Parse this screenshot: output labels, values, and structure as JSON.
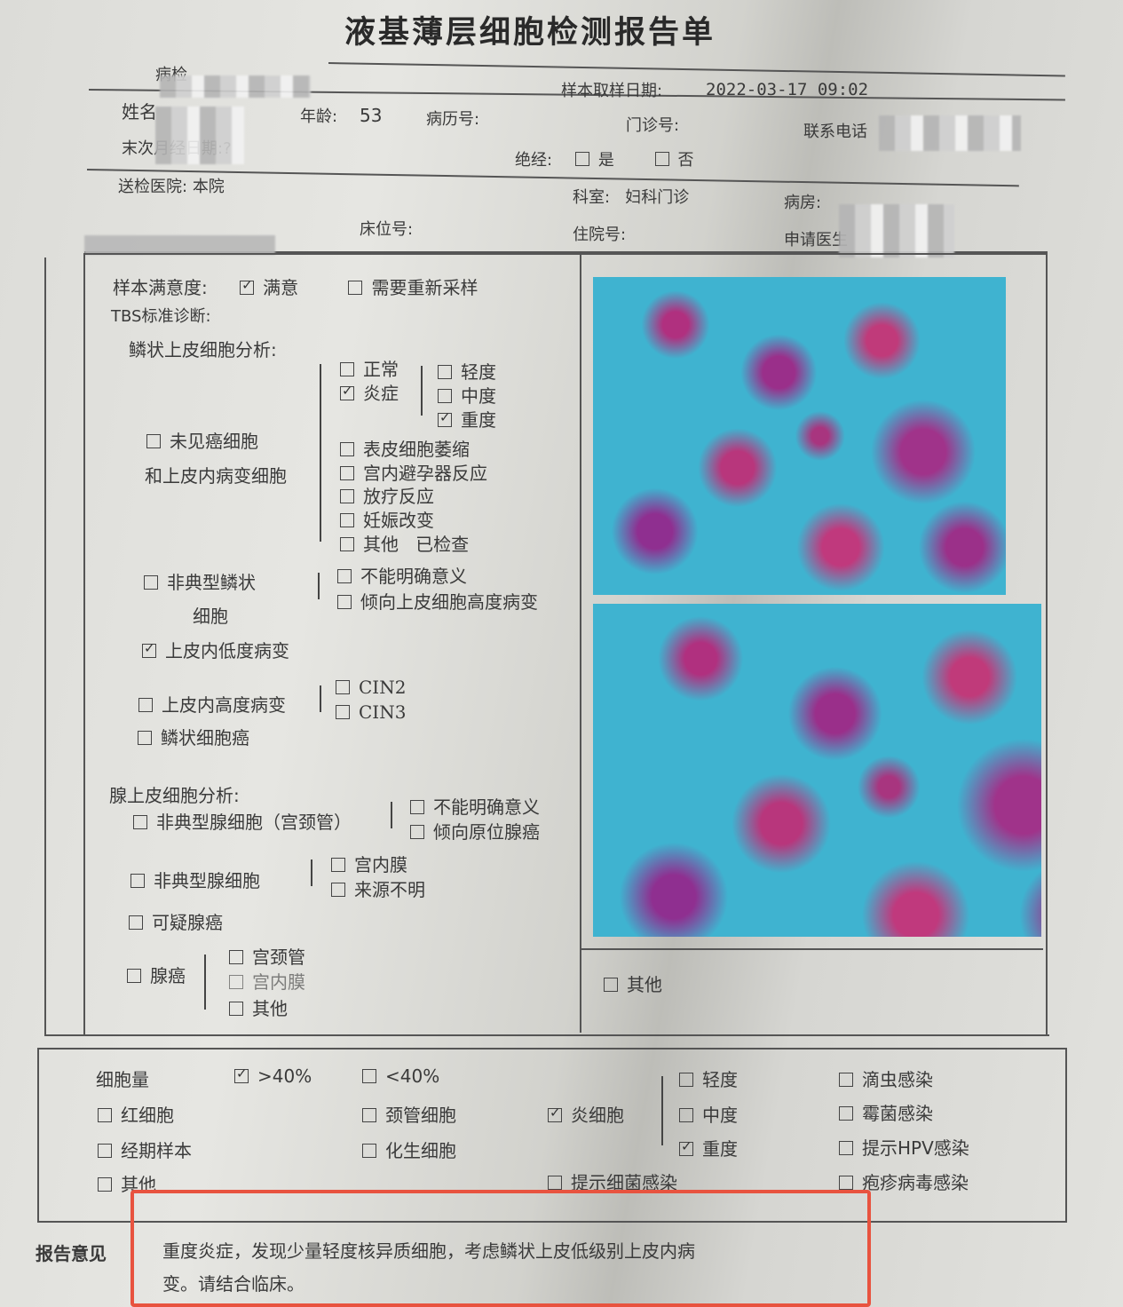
{
  "title": "液基薄层细胞检测报告单",
  "header": {
    "pathology_no_label": "病检",
    "sample_date_label": "样本取样日期:",
    "sample_date": "2022-03-17 09:02",
    "name_label": "姓名",
    "age_label": "年龄:",
    "age": "53",
    "record_no_label": "病历号:",
    "outpatient_no_label": "门诊号:",
    "phone_label": "联系电话",
    "lmp_label": "末次月经日期:",
    "lmp_value": "?",
    "menopause_label": "绝经:",
    "menopause_yes": {
      "label": "是",
      "checked": false
    },
    "menopause_no": {
      "label": "否",
      "checked": false
    },
    "hospital_label": "送检医院:",
    "hospital": "本院",
    "dept_label": "科室:",
    "dept": "妇科门诊",
    "ward_label": "病房:",
    "bed_label": "床位号:",
    "inpatient_label": "住院号:",
    "doctor_label": "申请医生"
  },
  "tbs": {
    "satisfaction_label": "样本满意度:",
    "satisfied": {
      "label": "满意",
      "checked": true
    },
    "resample": {
      "label": "需要重新采样",
      "checked": false
    },
    "diag_label": "TBS标准诊断:",
    "squamous_label": "鳞状上皮细胞分析:",
    "no_cancer": {
      "label1": "未见癌细胞",
      "label2": "和上皮内病变细胞",
      "checked": false
    },
    "normal": {
      "label": "正常",
      "checked": false
    },
    "inflammation": {
      "label": "炎症",
      "checked": true
    },
    "mild": {
      "label": "轻度",
      "checked": false
    },
    "moderate": {
      "label": "中度",
      "checked": false
    },
    "severe": {
      "label": "重度",
      "checked": true
    },
    "atrophy": {
      "label": "表皮细胞萎缩",
      "checked": false
    },
    "iud": {
      "label": "宫内避孕器反应",
      "checked": false
    },
    "radiation": {
      "label": "放疗反应",
      "checked": false
    },
    "pregnancy": {
      "label": "妊娠改变",
      "checked": false
    },
    "other": {
      "label": "其他",
      "note": "已检查",
      "checked": false
    },
    "asc": {
      "label1": "非典型鳞状",
      "label2": "细胞",
      "checked": false
    },
    "ascus": {
      "label": "不能明确意义",
      "checked": false
    },
    "asch": {
      "label": "倾向上皮细胞高度病变",
      "checked": false
    },
    "lsil": {
      "label": "上皮内低度病变",
      "checked": true
    },
    "hsil": {
      "label": "上皮内高度病变",
      "checked": false
    },
    "cin2": {
      "label": "CIN2",
      "checked": false
    },
    "cin3": {
      "label": "CIN3",
      "checked": false
    },
    "scc": {
      "label": "鳞状细胞癌",
      "checked": false
    },
    "glandular_label": "腺上皮细胞分析:",
    "agc_cervical": {
      "label": "非典型腺细胞（宫颈管）",
      "checked": false
    },
    "agc_nos": {
      "label": "不能明确意义",
      "checked": false
    },
    "agc_neo": {
      "label": "倾向原位腺癌",
      "checked": false
    },
    "agc": {
      "label": "非典型腺细胞",
      "checked": false
    },
    "endometrial": {
      "label": "宫内膜",
      "checked": false
    },
    "unknown": {
      "label": "来源不明",
      "checked": false
    },
    "suspect_adeno": {
      "label": "可疑腺癌",
      "checked": false
    },
    "adeno": {
      "label": "腺癌",
      "checked": false
    },
    "adeno_cervical": {
      "label": "宫颈管",
      "checked": false
    },
    "adeno_endo": {
      "label": "宫内膜",
      "checked": false
    },
    "adeno_other": {
      "label": "其他",
      "checked": false
    },
    "right_other": {
      "label": "其他",
      "checked": false
    }
  },
  "cells": {
    "amount_label": "细胞量",
    "gt40": {
      "label": ">40%",
      "checked": true
    },
    "lt40": {
      "label": "<40%",
      "checked": false
    },
    "rbc": {
      "label": "红细胞",
      "checked": false
    },
    "endocervical": {
      "label": "颈管细胞",
      "checked": false
    },
    "inflam_cells": {
      "label": "炎细胞",
      "checked": true
    },
    "mild": {
      "label": "轻度",
      "checked": false
    },
    "moderate": {
      "label": "中度",
      "checked": false
    },
    "severe": {
      "label": "重度",
      "checked": true
    },
    "menstrual": {
      "label": "经期样本",
      "checked": false
    },
    "metaplastic": {
      "label": "化生细胞",
      "checked": false
    },
    "other": {
      "label": "其他",
      "checked": false
    },
    "bacterial": {
      "label": "提示细菌感染",
      "checked": false
    },
    "trichomonas": {
      "label": "滴虫感染",
      "checked": false
    },
    "fungal": {
      "label": "霉菌感染",
      "checked": false
    },
    "hpv": {
      "label": "提示HPV感染",
      "checked": false
    },
    "herpes": {
      "label": "疱疹病毒感染",
      "checked": false
    }
  },
  "opinion": {
    "label": "报告意见",
    "line1": "重度炎症，发现少量轻度核异质细胞，考虑鳞状上皮低级别上皮内病",
    "line2": "变。请结合临床。",
    "highlight_color": "#e8533f"
  }
}
